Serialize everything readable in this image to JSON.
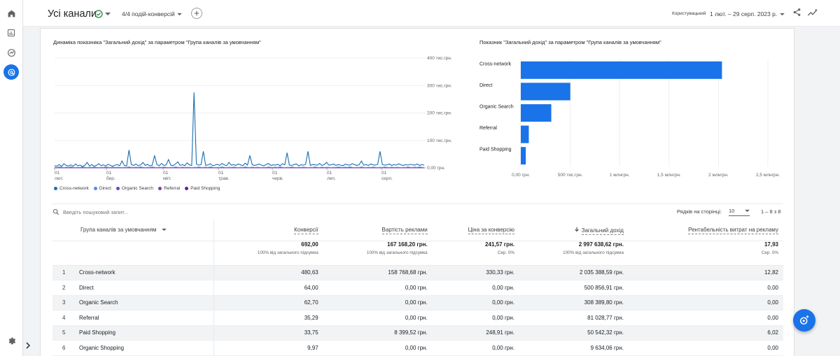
{
  "header": {
    "title": "Усі канали",
    "conversions_selector": "4/4 подій-конверсій",
    "compare_label": "Користувацький",
    "date_range": "1 лют. – 29 серп. 2023 р."
  },
  "line_chart_title": "Динаміка показника \"Загальний дохід\" за параметром \"Група каналів за умовчанням\"",
  "bar_chart_title": "Показник \"Загальний дохід\" за параметром \"Група каналів за умовчанням\"",
  "chart_data": [
    {
      "type": "line",
      "ylim": [
        0,
        400000
      ],
      "y_ticks": [
        "400 тис.грн.",
        "300 тис.грн.",
        "200 тис.грн.",
        "100 тис.грн.",
        "0,00 грн."
      ],
      "x_ticks": [
        {
          "day": "01",
          "month": "лют."
        },
        {
          "day": "01",
          "month": "бер."
        },
        {
          "day": "01",
          "month": "квіт."
        },
        {
          "day": "01",
          "month": "трав."
        },
        {
          "day": "01",
          "month": "черв."
        },
        {
          "day": "01",
          "month": "лип."
        },
        {
          "day": "01",
          "month": "серп."
        }
      ],
      "series": [
        {
          "name": "Cross-network",
          "color": "#1a6fb0",
          "values": [
            8000,
            6000,
            12000,
            5000,
            15000,
            9000,
            7000,
            11000,
            6000,
            14000,
            8000,
            10000,
            5000,
            9000,
            20000,
            7000,
            12000,
            6000,
            9000,
            15000,
            8000,
            11000,
            7000,
            13000,
            9000,
            6000,
            10000,
            12000,
            8000,
            25000,
            9000,
            7000,
            65000,
            12000,
            9000,
            14000,
            8000,
            11000,
            20000,
            9000,
            13000,
            7000,
            10000,
            45000,
            12000,
            8000,
            16000,
            9000,
            11000,
            30000,
            10000,
            8000,
            14000,
            22000,
            9000,
            12000,
            8000,
            18000,
            11000,
            9000,
            275000,
            14000,
            10000,
            12000,
            60000,
            9000,
            11000,
            15000,
            8000,
            10000,
            13000,
            9000,
            16000,
            11000,
            8000,
            20000,
            10000,
            12000,
            9000,
            14000,
            11000,
            8000,
            17000,
            10000,
            45000,
            12000,
            9000,
            11000,
            14000,
            10000,
            8000,
            12000,
            16000,
            9000,
            11000,
            10000,
            13000,
            8000,
            15000,
            11000,
            55000,
            10000,
            9000,
            12000,
            14000,
            8000,
            11000,
            10000,
            13000,
            60000,
            9000,
            12000,
            11000,
            10000,
            16000,
            9000,
            12000,
            20000,
            10000,
            11000,
            14000,
            9000,
            12000,
            10000,
            8000,
            13000,
            11000,
            10000,
            15000,
            12000,
            9000,
            11000,
            25000,
            10000,
            12000,
            9000,
            14000,
            11000,
            10000,
            13000,
            60000,
            12000,
            10000,
            11000,
            14000,
            9000,
            12000,
            10000,
            15000,
            11000,
            9000,
            12000,
            10000,
            13000,
            11000,
            10000,
            14000,
            9000,
            12000,
            10000
          ]
        },
        {
          "name": "Direct",
          "color": "#4c8bf5",
          "values": [
            2000,
            1500,
            3000,
            2000,
            1000,
            2500,
            1500,
            3500,
            2000,
            1000,
            2000,
            1500,
            3000,
            1800,
            1000,
            2200,
            1500,
            2800,
            1700,
            1000,
            2000,
            1500,
            3000,
            2000,
            1200,
            2500,
            1500,
            2000,
            1800,
            1000,
            2000,
            1500,
            3000,
            2000,
            1500,
            2500,
            1500,
            3500,
            2000,
            1000,
            2000,
            1500,
            3000,
            1800,
            1000,
            2200,
            1500,
            2800,
            1700,
            1000,
            2000,
            1500,
            3000,
            2000,
            1200,
            2500,
            1500,
            2000,
            1800,
            1000,
            2000,
            1500,
            3000,
            2000,
            1500,
            2500,
            1500,
            3500,
            2000,
            1000,
            2000,
            1500,
            3000,
            1800,
            1000,
            2200,
            1500,
            2800,
            1700,
            1000,
            2000,
            1500,
            3000,
            2000,
            1200,
            2500,
            1500,
            2000,
            1800,
            1000,
            2000,
            1500,
            3000,
            2000,
            1500,
            2500,
            1500,
            3500,
            2000,
            1000,
            2000,
            1500,
            3000,
            1800,
            1000,
            2200,
            1500,
            2800,
            1700,
            1000,
            2000,
            1500,
            3000,
            2000,
            1200,
            2500,
            1500,
            2000,
            1800,
            1000,
            2000,
            1500,
            3000,
            2000,
            1500,
            2500,
            1500,
            3500,
            2000,
            1000,
            2000,
            1500,
            3000,
            1800,
            1000,
            2200,
            1500,
            2800,
            1700,
            1000,
            2000,
            1500,
            3000,
            2000,
            1200,
            2500,
            1500,
            2000,
            1800,
            1000,
            2000,
            1500,
            3000,
            2000,
            1500,
            2500,
            1500,
            3500,
            2000,
            1000
          ]
        },
        {
          "name": "Organic Search",
          "color": "#5b4fcf",
          "values": [
            1500,
            1000,
            2000,
            1200,
            800,
            1800,
            1000,
            2500,
            1500,
            900,
            1500,
            1000,
            2000,
            1200,
            800,
            1600,
            1000,
            2100,
            1300,
            800,
            1500,
            1000,
            2000,
            1500,
            900,
            1800,
            1000,
            1500,
            1300,
            800,
            1500,
            1000,
            2000,
            1500,
            1000,
            1800,
            1000,
            2500,
            1500,
            900,
            1500,
            1000,
            2000,
            1200,
            800,
            1600,
            1000,
            2100,
            1300,
            800,
            1500,
            1000,
            2000,
            1500,
            900,
            1800,
            1000,
            1500,
            1300,
            800,
            1500,
            1000,
            2000,
            1500,
            1000,
            1800,
            1000,
            2500,
            1500,
            900,
            1500,
            1000,
            2000,
            1200,
            800,
            1600,
            1000,
            2100,
            1300,
            800,
            1500,
            1000,
            2000,
            1500,
            900,
            1800,
            1000,
            1500,
            1300,
            800,
            1500,
            1000,
            2000,
            1500,
            1000,
            1800,
            1000,
            2500,
            1500,
            900,
            1500,
            1000,
            2000,
            1200,
            800,
            1600,
            1000,
            2100,
            1300,
            800,
            1500,
            1000,
            2000,
            1500,
            900,
            1800,
            1000,
            1500,
            1300,
            800,
            1500,
            1000,
            2000,
            1500,
            1000,
            1800,
            1000,
            2500,
            1500,
            900,
            1500,
            1000,
            2000,
            1200,
            800,
            1600,
            1000,
            2100,
            1300,
            800,
            1500,
            1000,
            2000,
            1500,
            900,
            1800,
            1000,
            1500,
            1300,
            800,
            1500,
            1000,
            2000,
            1500,
            1000,
            1800,
            1000,
            2500,
            1500,
            900
          ]
        },
        {
          "name": "Referral",
          "color": "#7b3fa8",
          "values": [
            500,
            400,
            600,
            300,
            500,
            400,
            700,
            300,
            500,
            400,
            600,
            300,
            500,
            400,
            600,
            300,
            500,
            400,
            700,
            300,
            500,
            400,
            600,
            300,
            500,
            400,
            600,
            300,
            500,
            400,
            600,
            300,
            500,
            400,
            700,
            300,
            500,
            400,
            600,
            300,
            500,
            400,
            600,
            300,
            500,
            400,
            700,
            300,
            500,
            400,
            600,
            300,
            500,
            400,
            600,
            300,
            500,
            400,
            600,
            300,
            500,
            400,
            700,
            300,
            500,
            400,
            600,
            300,
            500,
            400,
            600,
            300,
            500,
            400,
            700,
            300,
            500,
            400,
            600,
            300,
            500,
            400,
            600,
            300,
            500,
            400,
            600,
            300,
            500,
            400,
            700,
            300,
            500,
            400,
            600,
            300,
            500,
            400,
            600,
            300,
            500,
            400,
            700,
            300,
            500,
            400,
            600,
            300,
            500,
            400,
            600,
            300,
            500,
            400,
            600,
            300,
            500,
            400,
            700,
            300,
            500,
            400,
            600,
            300,
            500,
            400,
            600,
            300,
            500,
            400,
            700,
            300,
            500,
            400,
            600,
            300,
            500,
            400,
            600,
            300,
            500,
            400,
            600,
            300,
            500,
            400,
            700,
            300,
            500,
            400,
            600,
            300,
            500,
            400,
            600,
            300,
            500,
            400,
            700,
            300
          ]
        },
        {
          "name": "Paid Shopping",
          "color": "#6a1b9a",
          "values": [
            300,
            200,
            400,
            200,
            300,
            200,
            500,
            200,
            300,
            200,
            400,
            200,
            300,
            200,
            400,
            200,
            300,
            200,
            500,
            200,
            300,
            200,
            400,
            200,
            300,
            200,
            400,
            200,
            300,
            200,
            400,
            200,
            300,
            200,
            500,
            200,
            300,
            200,
            400,
            200,
            300,
            200,
            400,
            200,
            300,
            200,
            500,
            200,
            300,
            200,
            400,
            200,
            300,
            200,
            400,
            200,
            300,
            200,
            400,
            200,
            300,
            200,
            500,
            200,
            300,
            200,
            400,
            200,
            300,
            200,
            400,
            200,
            300,
            200,
            500,
            200,
            300,
            200,
            400,
            200,
            300,
            200,
            400,
            200,
            300,
            200,
            400,
            200,
            300,
            200,
            500,
            200,
            300,
            200,
            400,
            200,
            300,
            200,
            400,
            200,
            300,
            200,
            500,
            200,
            300,
            200,
            400,
            200,
            300,
            200,
            400,
            200,
            300,
            200,
            400,
            200,
            300,
            200,
            500,
            200,
            300,
            200,
            400,
            200,
            300,
            200,
            400,
            200,
            300,
            200,
            500,
            200,
            300,
            200,
            400,
            200,
            300,
            200,
            400,
            200,
            300,
            200,
            400,
            200,
            300,
            200,
            500,
            200,
            300,
            200,
            400,
            200,
            300,
            200,
            400,
            200,
            300,
            200,
            500,
            200
          ]
        }
      ]
    },
    {
      "type": "bar",
      "orientation": "horizontal",
      "color": "#1a73e8",
      "categories": [
        "Cross-network",
        "Direct",
        "Organic Search",
        "Referral",
        "Paid Shopping"
      ],
      "values": [
        2035388.59,
        500856.91,
        308389.8,
        81028.77,
        50542.32
      ],
      "xlim": [
        0,
        2500000
      ],
      "x_ticks": [
        "0,00 грн.",
        "500 тис.грн.",
        "1 млнгрн.",
        "1,5 млнгрн.",
        "2 млнгрн.",
        "2,5 млнгрн."
      ]
    }
  ],
  "table": {
    "search_placeholder": "Введіть пошуковий запит...",
    "rows_per_page_label": "Рядків на сторінці:",
    "rows_per_page_value": "10",
    "page_info": "1 – 8 з 8",
    "dimension_header": "Група каналів за умовчанням",
    "columns": [
      "Конверсії",
      "Вартість реклами",
      "Ціна за конверсію",
      "Загальний дохід",
      "Рентабельність витрат на рекламу"
    ],
    "totals": [
      {
        "value": "692,00",
        "sub": "100% від загального підсумка"
      },
      {
        "value": "167 168,20 грн.",
        "sub": "100% від загального підсумка"
      },
      {
        "value": "241,57 грн.",
        "sub": "Сер. 0%"
      },
      {
        "value": "2 997 638,62 грн.",
        "sub": "100% від загального підсумка"
      },
      {
        "value": "17,93",
        "sub": "Сер. 0%"
      }
    ],
    "rows": [
      {
        "idx": "1",
        "name": "Cross-network",
        "cells": [
          "480,63",
          "158 768,68 грн.",
          "330,33 грн.",
          "2 035 388,59 грн.",
          "12,82"
        ]
      },
      {
        "idx": "2",
        "name": "Direct",
        "cells": [
          "64,00",
          "0,00 грн.",
          "0,00 грн.",
          "500 856,91 грн.",
          "0,00"
        ]
      },
      {
        "idx": "3",
        "name": "Organic Search",
        "cells": [
          "62,70",
          "0,00 грн.",
          "0,00 грн.",
          "308 389,80 грн.",
          "0,00"
        ]
      },
      {
        "idx": "4",
        "name": "Referral",
        "cells": [
          "35,29",
          "0,00 грн.",
          "0,00 грн.",
          "81 028,77 грн.",
          "0,00"
        ]
      },
      {
        "idx": "5",
        "name": "Paid Shopping",
        "cells": [
          "33,75",
          "8 399,52 грн.",
          "248,91 грн.",
          "50 542,32 грн.",
          "6,02"
        ]
      },
      {
        "idx": "6",
        "name": "Organic Shopping",
        "cells": [
          "9,97",
          "0,00 грн.",
          "0,00 грн.",
          "9 634,06 грн.",
          "0,00"
        ]
      }
    ]
  }
}
